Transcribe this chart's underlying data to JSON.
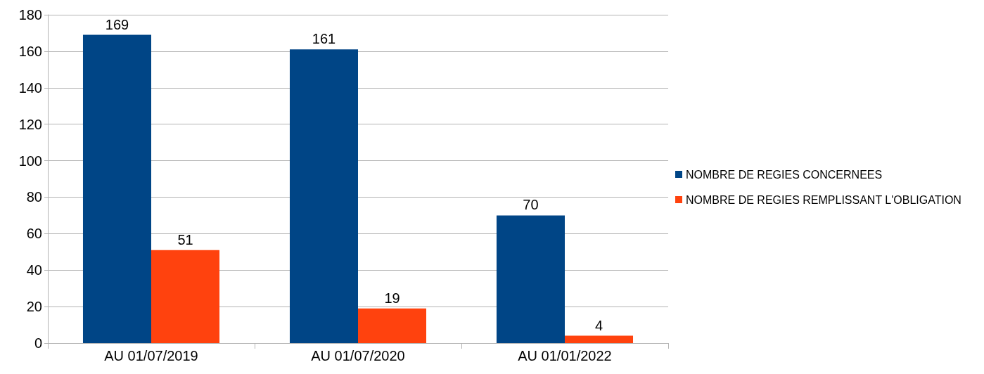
{
  "chart_data": {
    "type": "bar",
    "categories": [
      "AU 01/07/2019",
      "AU 01/07/2020",
      "AU 01/01/2022"
    ],
    "series": [
      {
        "name": "NOMBRE DE REGIES CONCERNEES",
        "color": "#004586",
        "values": [
          169,
          161,
          70
        ]
      },
      {
        "name": "NOMBRE DE REGIES REMPLISSANT L'OBLIGATION",
        "color": "#ff420e",
        "values": [
          51,
          19,
          4
        ]
      }
    ],
    "ylim": [
      0,
      180
    ],
    "yticks": [
      0,
      20,
      40,
      60,
      80,
      100,
      120,
      140,
      160,
      180
    ],
    "grid": "y",
    "legend": "right",
    "data_labels": true
  }
}
